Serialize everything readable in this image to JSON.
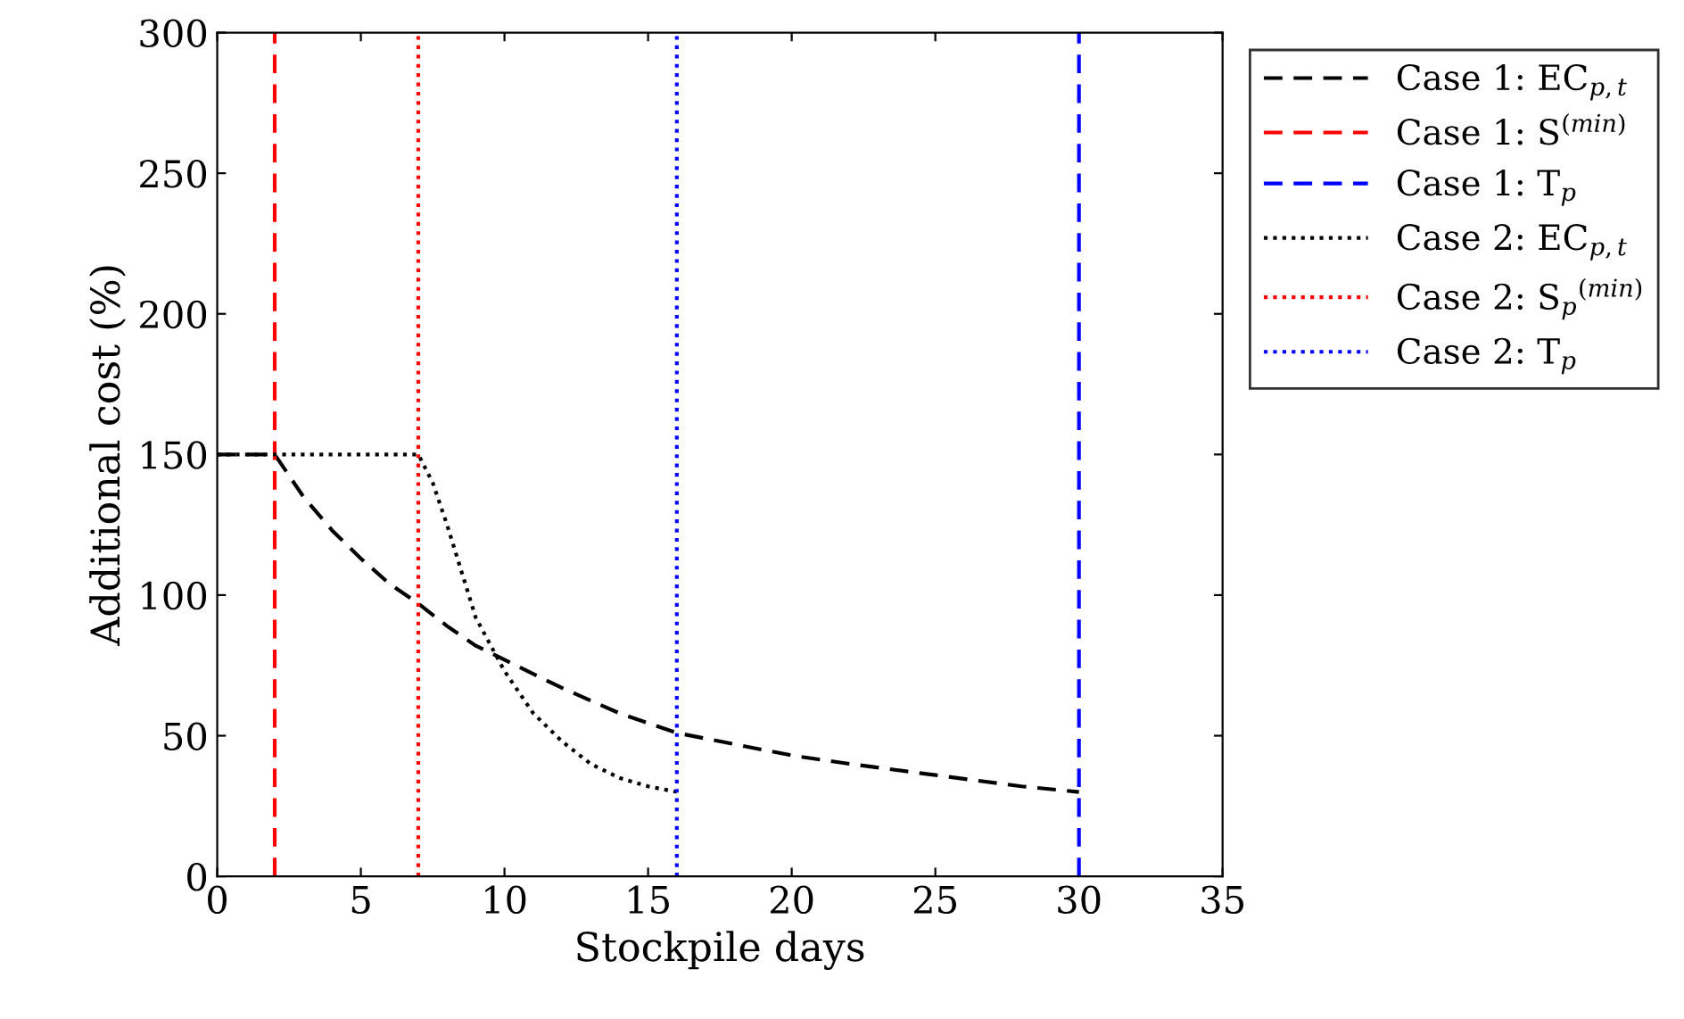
{
  "chart_data": {
    "type": "line",
    "xlabel": "Stockpile days",
    "ylabel": "Additional cost (%)",
    "xlim": [
      0,
      35
    ],
    "ylim": [
      0,
      300
    ],
    "xticks": [
      0,
      5,
      10,
      15,
      20,
      25,
      30,
      35
    ],
    "yticks": [
      0,
      50,
      100,
      150,
      200,
      250,
      300
    ],
    "grid": false,
    "legend": "top right",
    "marker": "none",
    "series": [
      {
        "name": "Case 1: EC$_{p,t}$",
        "color": "#000000",
        "line_style": "dashed",
        "x": [
          0,
          2,
          3,
          4,
          5,
          6,
          7,
          8,
          9,
          10,
          12,
          14,
          16,
          18,
          20,
          22,
          25,
          28,
          30
        ],
        "values": [
          150,
          150,
          135,
          123,
          113,
          104,
          97,
          89,
          82,
          77,
          67,
          58,
          51,
          47,
          43,
          40,
          36,
          32,
          30
        ]
      },
      {
        "name": "Case 1: S$^{(min)}$",
        "color": "#ff0000",
        "line_style": "dashed",
        "x": [
          2,
          2
        ],
        "values": [
          0,
          300
        ]
      },
      {
        "name": "Case 1: T$_{p}$",
        "color": "#0000ff",
        "line_style": "dashed",
        "x": [
          30,
          30
        ],
        "values": [
          0,
          300
        ]
      },
      {
        "name": "Case 2: EC$_{p,t}$",
        "color": "#000000",
        "line_style": "dotted",
        "x": [
          0,
          2,
          7,
          7.5,
          8,
          9,
          10,
          11,
          12,
          13,
          14,
          15,
          16
        ],
        "values": [
          150,
          150,
          150,
          140,
          125,
          92,
          73,
          58,
          48,
          40,
          35,
          32,
          30
        ]
      },
      {
        "name": "Case 2: S$_{p}$$^{(min)}$",
        "color": "#ff0000",
        "line_style": "dotted",
        "x": [
          7,
          7
        ],
        "values": [
          0,
          300
        ]
      },
      {
        "name": "Case 2: T$_{p}$",
        "color": "#0000ff",
        "line_style": "dotted",
        "x": [
          16,
          16
        ],
        "values": [
          0,
          300
        ]
      }
    ]
  }
}
